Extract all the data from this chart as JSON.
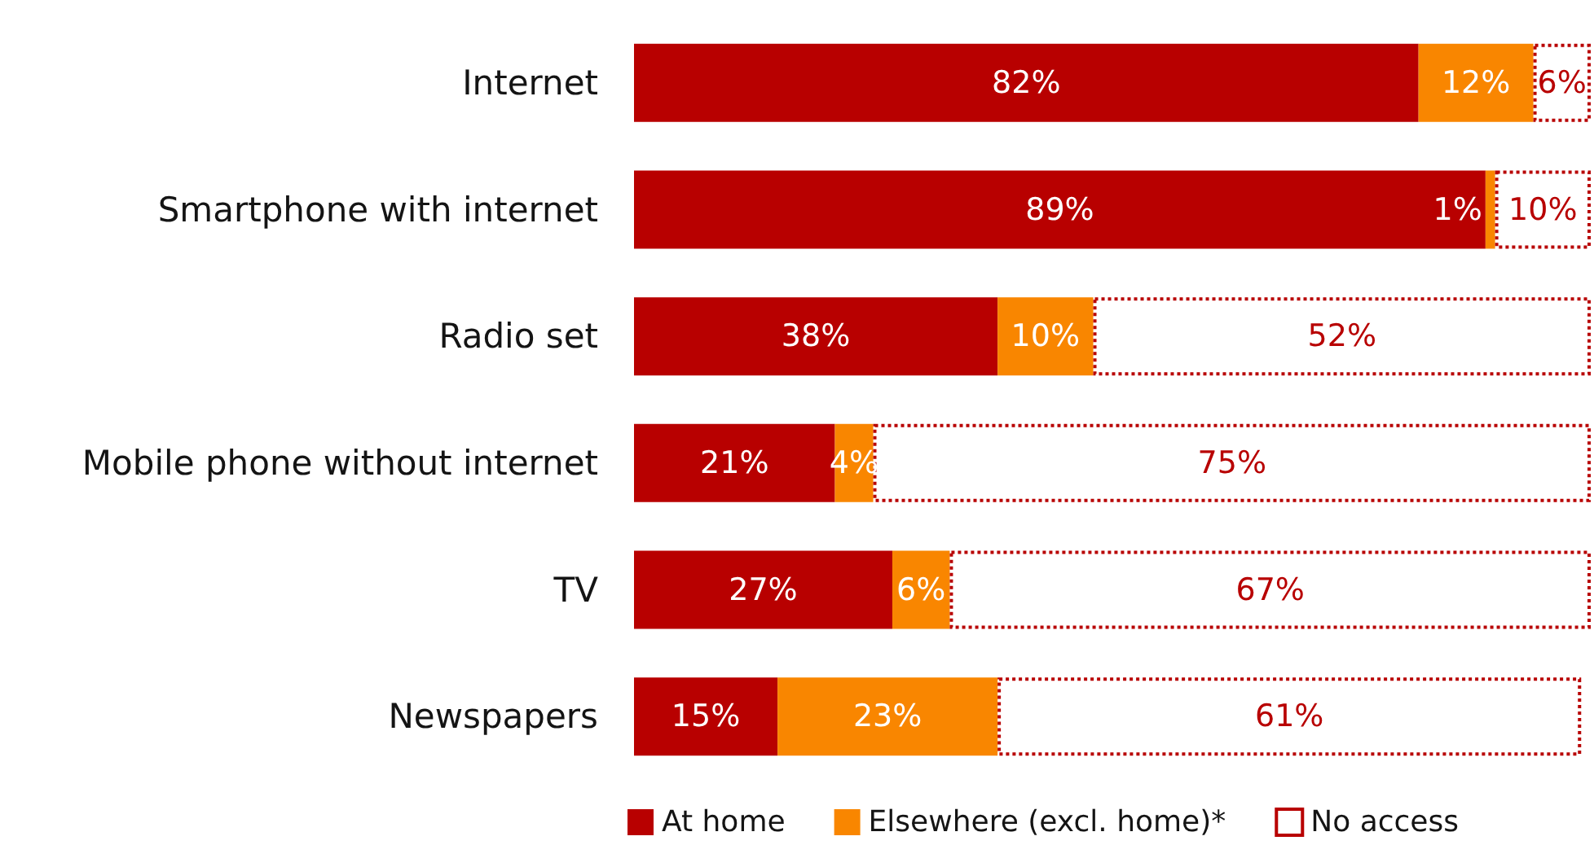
{
  "chart_data": {
    "type": "bar",
    "orientation": "horizontal",
    "stacked": true,
    "categories": [
      "Internet",
      "Smartphone with internet",
      "Radio set",
      "Mobile phone without internet",
      "TV",
      "Newspapers"
    ],
    "xlim": [
      0,
      100
    ],
    "tick_labels": "y",
    "legend": "bottom",
    "series": [
      {
        "name": "At home",
        "color": "#b80000",
        "values": [
          82,
          89,
          38,
          21,
          27,
          15
        ],
        "value_labels": [
          "82%",
          "89%",
          "38%",
          "21%",
          "27%",
          "15%"
        ]
      },
      {
        "name": "Elsewhere (excl. home)*",
        "color": "#f98600",
        "values": [
          12,
          1,
          10,
          4,
          6,
          23
        ],
        "value_labels": [
          "12%",
          "1%",
          "10%",
          "4%",
          "6%",
          "23%"
        ]
      },
      {
        "name": "No access",
        "color": "#b80000",
        "line_style": "dotted",
        "values": [
          6,
          10,
          52,
          75,
          67,
          61
        ],
        "value_labels": [
          "6%",
          "10%",
          "52%",
          "75%",
          "67%",
          "61%"
        ]
      }
    ]
  }
}
